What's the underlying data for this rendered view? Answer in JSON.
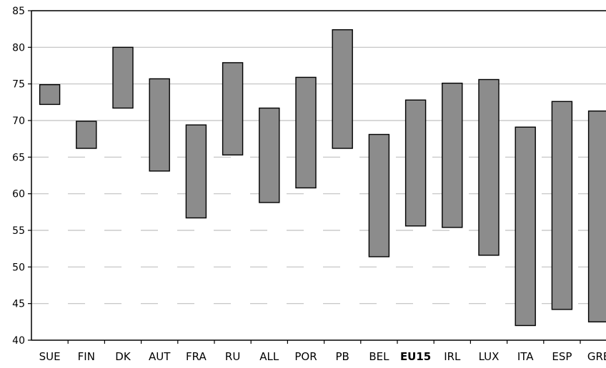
{
  "chart_data": {
    "type": "bar",
    "subtype": "floating-range",
    "categories": [
      "SUE",
      "FIN",
      "DK",
      "AUT",
      "FRA",
      "RU",
      "ALL",
      "POR",
      "PB",
      "BEL",
      "EU15",
      "IRL",
      "LUX",
      "ITA",
      "ESP",
      "GRE"
    ],
    "highlight_category": "EU15",
    "series": [
      {
        "low": [
          72.2,
          66.2,
          71.7,
          63.1,
          56.7,
          65.3,
          58.8,
          60.8,
          66.2,
          51.4,
          55.6,
          55.4,
          51.6,
          42.0,
          44.2,
          42.5
        ],
        "high": [
          74.9,
          69.9,
          80.0,
          75.7,
          69.4,
          77.9,
          71.7,
          75.9,
          82.4,
          68.1,
          72.8,
          75.1,
          75.6,
          69.1,
          72.6,
          71.3
        ]
      }
    ],
    "ylim": [
      40,
      85
    ],
    "yticks": [
      "40",
      "45",
      "50",
      "55",
      "60",
      "65",
      "70",
      "75",
      "80",
      "85"
    ],
    "grid": true,
    "bar_color": "#8c8c8c",
    "grid_color": "#c0c0c0",
    "title": "",
    "xlabel": "",
    "ylabel": ""
  }
}
